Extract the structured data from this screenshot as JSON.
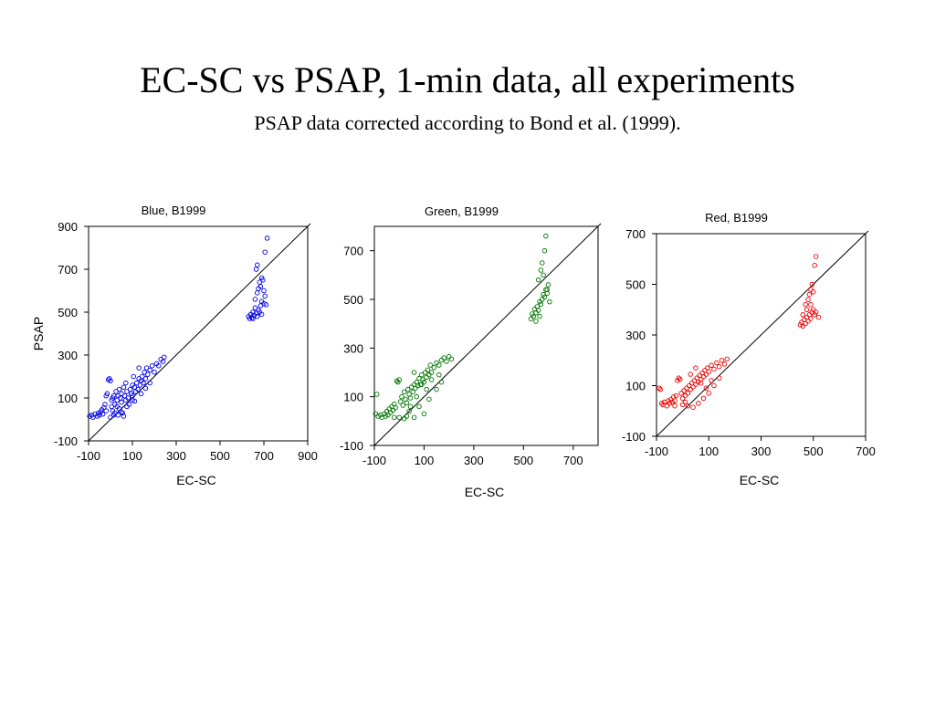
{
  "page": {
    "title": "EC-SC vs PSAP, 1-min data, all experiments",
    "subtitle": "PSAP data corrected according to Bond et al. (1999)."
  },
  "chart_data": [
    {
      "type": "scatter",
      "title": "Blue,  B1999",
      "xlabel": "EC-SC",
      "ylabel": "PSAP",
      "xlim": [
        -100,
        900
      ],
      "ylim": [
        -100,
        900
      ],
      "xticks": [
        -100,
        100,
        300,
        500,
        700,
        900
      ],
      "yticks": [
        -100,
        100,
        300,
        500,
        700,
        900
      ],
      "xtick_labels": [
        "-100",
        "100",
        "300",
        "500",
        "700",
        "900"
      ],
      "ytick_labels": [
        "-100",
        "100",
        "300",
        "500",
        "700",
        "900"
      ],
      "reference_line": "1:1",
      "marker": "open-circle",
      "color": "#0000ee",
      "points": [
        [
          -95,
          15
        ],
        [
          -85,
          20
        ],
        [
          -80,
          10
        ],
        [
          -70,
          25
        ],
        [
          -60,
          15
        ],
        [
          -55,
          30
        ],
        [
          -50,
          20
        ],
        [
          -45,
          35
        ],
        [
          -40,
          45
        ],
        [
          -35,
          25
        ],
        [
          -30,
          55
        ],
        [
          -25,
          70
        ],
        [
          -20,
          40
        ],
        [
          -20,
          110
        ],
        [
          -15,
          120
        ],
        [
          -10,
          185
        ],
        [
          -5,
          190
        ],
        [
          0,
          180
        ],
        [
          5,
          60
        ],
        [
          5,
          90
        ],
        [
          10,
          40
        ],
        [
          10,
          100
        ],
        [
          15,
          110
        ],
        [
          20,
          70
        ],
        [
          25,
          130
        ],
        [
          30,
          60
        ],
        [
          30,
          90
        ],
        [
          35,
          110
        ],
        [
          40,
          50
        ],
        [
          40,
          140
        ],
        [
          45,
          100
        ],
        [
          50,
          80
        ],
        [
          50,
          120
        ],
        [
          55,
          30
        ],
        [
          60,
          150
        ],
        [
          65,
          110
        ],
        [
          70,
          90
        ],
        [
          70,
          170
        ],
        [
          75,
          130
        ],
        [
          80,
          100
        ],
        [
          85,
          70
        ],
        [
          90,
          140
        ],
        [
          95,
          120
        ],
        [
          100,
          110
        ],
        [
          100,
          160
        ],
        [
          105,
          200
        ],
        [
          110,
          150
        ],
        [
          115,
          130
        ],
        [
          120,
          170
        ],
        [
          125,
          140
        ],
        [
          130,
          190
        ],
        [
          135,
          160
        ],
        [
          140,
          180
        ],
        [
          145,
          200
        ],
        [
          150,
          170
        ],
        [
          155,
          220
        ],
        [
          160,
          190
        ],
        [
          165,
          240
        ],
        [
          170,
          210
        ],
        [
          180,
          230
        ],
        [
          190,
          250
        ],
        [
          200,
          220
        ],
        [
          210,
          260
        ],
        [
          220,
          250
        ],
        [
          230,
          280
        ],
        [
          240,
          270
        ],
        [
          245,
          290
        ],
        [
          60,
          15
        ],
        [
          100,
          90
        ],
        [
          130,
          240
        ],
        [
          20,
          30
        ],
        [
          35,
          20
        ],
        [
          0,
          10
        ],
        [
          15,
          20
        ],
        [
          50,
          35
        ],
        [
          75,
          60
        ],
        [
          110,
          85
        ],
        [
          140,
          120
        ],
        [
          160,
          145
        ],
        [
          180,
          170
        ],
        [
          630,
          480
        ],
        [
          635,
          470
        ],
        [
          640,
          490
        ],
        [
          645,
          475
        ],
        [
          650,
          500
        ],
        [
          655,
          485
        ],
        [
          660,
          520
        ],
        [
          665,
          495
        ],
        [
          670,
          480
        ],
        [
          675,
          510
        ],
        [
          680,
          500
        ],
        [
          685,
          530
        ],
        [
          690,
          550
        ],
        [
          700,
          540
        ],
        [
          705,
          575
        ],
        [
          660,
          560
        ],
        [
          670,
          590
        ],
        [
          675,
          610
        ],
        [
          680,
          640
        ],
        [
          685,
          620
        ],
        [
          690,
          660
        ],
        [
          695,
          650
        ],
        [
          700,
          600
        ],
        [
          665,
          700
        ],
        [
          670,
          720
        ],
        [
          705,
          780
        ],
        [
          715,
          845
        ],
        [
          710,
          535
        ],
        [
          650,
          470
        ],
        [
          690,
          490
        ]
      ]
    },
    {
      "type": "scatter",
      "title": "Green, B1999",
      "xlabel": "EC-SC",
      "ylabel": "",
      "xlim": [
        -100,
        800
      ],
      "ylim": [
        -100,
        800
      ],
      "xticks": [
        -100,
        100,
        300,
        500,
        700
      ],
      "yticks": [
        -100,
        100,
        300,
        500,
        700
      ],
      "xtick_labels": [
        "-100",
        "100",
        "300",
        "500",
        "700"
      ],
      "ytick_labels": [
        "-100",
        "100",
        "300",
        "500",
        "700"
      ],
      "reference_line": "1:1",
      "marker": "open-circle",
      "color": "#007700",
      "points": [
        [
          -95,
          30
        ],
        [
          -90,
          110
        ],
        [
          -85,
          20
        ],
        [
          -75,
          25
        ],
        [
          -70,
          15
        ],
        [
          -60,
          30
        ],
        [
          -55,
          20
        ],
        [
          -50,
          40
        ],
        [
          -45,
          25
        ],
        [
          -40,
          50
        ],
        [
          -35,
          35
        ],
        [
          -30,
          60
        ],
        [
          -25,
          45
        ],
        [
          -20,
          70
        ],
        [
          -15,
          55
        ],
        [
          -10,
          165
        ],
        [
          -5,
          160
        ],
        [
          0,
          170
        ],
        [
          5,
          80
        ],
        [
          10,
          100
        ],
        [
          15,
          65
        ],
        [
          20,
          120
        ],
        [
          25,
          90
        ],
        [
          30,
          75
        ],
        [
          35,
          130
        ],
        [
          40,
          110
        ],
        [
          45,
          95
        ],
        [
          50,
          140
        ],
        [
          55,
          120
        ],
        [
          60,
          150
        ],
        [
          65,
          135
        ],
        [
          70,
          160
        ],
        [
          75,
          145
        ],
        [
          80,
          175
        ],
        [
          85,
          150
        ],
        [
          90,
          190
        ],
        [
          95,
          170
        ],
        [
          100,
          160
        ],
        [
          105,
          200
        ],
        [
          110,
          180
        ],
        [
          115,
          210
        ],
        [
          120,
          190
        ],
        [
          125,
          230
        ],
        [
          130,
          200
        ],
        [
          140,
          220
        ],
        [
          150,
          240
        ],
        [
          160,
          230
        ],
        [
          170,
          250
        ],
        [
          180,
          260
        ],
        [
          190,
          245
        ],
        [
          200,
          265
        ],
        [
          210,
          255
        ],
        [
          30,
          20
        ],
        [
          60,
          15
        ],
        [
          100,
          30
        ],
        [
          20,
          10
        ],
        [
          0,
          15
        ],
        [
          40,
          40
        ],
        [
          80,
          60
        ],
        [
          120,
          90
        ],
        [
          150,
          130
        ],
        [
          170,
          160
        ],
        [
          60,
          200
        ],
        [
          90,
          150
        ],
        [
          110,
          130
        ],
        [
          45,
          60
        ],
        [
          -20,
          15
        ],
        [
          70,
          100
        ],
        [
          130,
          170
        ],
        [
          160,
          190
        ],
        [
          530,
          420
        ],
        [
          535,
          440
        ],
        [
          540,
          430
        ],
        [
          545,
          460
        ],
        [
          550,
          445
        ],
        [
          555,
          470
        ],
        [
          560,
          455
        ],
        [
          565,
          490
        ],
        [
          570,
          480
        ],
        [
          575,
          500
        ],
        [
          580,
          520
        ],
        [
          585,
          510
        ],
        [
          590,
          540
        ],
        [
          595,
          525
        ],
        [
          600,
          560
        ],
        [
          560,
          580
        ],
        [
          570,
          620
        ],
        [
          575,
          650
        ],
        [
          580,
          600
        ],
        [
          585,
          700
        ],
        [
          590,
          760
        ],
        [
          595,
          540
        ],
        [
          605,
          490
        ],
        [
          550,
          410
        ],
        [
          565,
          430
        ]
      ]
    },
    {
      "type": "scatter",
      "title": "Red, B1999",
      "xlabel": "EC-SC",
      "ylabel": "",
      "xlim": [
        -100,
        700
      ],
      "ylim": [
        -100,
        700
      ],
      "xticks": [
        -100,
        100,
        300,
        500,
        700
      ],
      "yticks": [
        -100,
        100,
        300,
        500,
        700
      ],
      "xtick_labels": [
        "-100",
        "100",
        "300",
        "500",
        "700"
      ],
      "ytick_labels": [
        "-100",
        "100",
        "300",
        "500",
        "700"
      ],
      "reference_line": "1:1",
      "marker": "open-circle",
      "color": "#ee0000",
      "points": [
        [
          -90,
          90
        ],
        [
          -85,
          85
        ],
        [
          -80,
          30
        ],
        [
          -75,
          25
        ],
        [
          -70,
          35
        ],
        [
          -60,
          20
        ],
        [
          -55,
          40
        ],
        [
          -50,
          30
        ],
        [
          -45,
          45
        ],
        [
          -40,
          35
        ],
        [
          -35,
          55
        ],
        [
          -30,
          40
        ],
        [
          -25,
          60
        ],
        [
          -20,
          120
        ],
        [
          -15,
          130
        ],
        [
          -10,
          125
        ],
        [
          -5,
          70
        ],
        [
          0,
          50
        ],
        [
          5,
          80
        ],
        [
          10,
          60
        ],
        [
          15,
          90
        ],
        [
          20,
          70
        ],
        [
          25,
          100
        ],
        [
          30,
          85
        ],
        [
          35,
          110
        ],
        [
          40,
          95
        ],
        [
          45,
          120
        ],
        [
          50,
          105
        ],
        [
          55,
          130
        ],
        [
          60,
          115
        ],
        [
          65,
          140
        ],
        [
          70,
          125
        ],
        [
          75,
          150
        ],
        [
          80,
          135
        ],
        [
          85,
          160
        ],
        [
          90,
          145
        ],
        [
          95,
          170
        ],
        [
          100,
          155
        ],
        [
          110,
          180
        ],
        [
          120,
          165
        ],
        [
          130,
          190
        ],
        [
          140,
          175
        ],
        [
          150,
          200
        ],
        [
          160,
          185
        ],
        [
          170,
          205
        ],
        [
          20,
          20
        ],
        [
          40,
          15
        ],
        [
          60,
          30
        ],
        [
          80,
          50
        ],
        [
          100,
          70
        ],
        [
          120,
          100
        ],
        [
          140,
          130
        ],
        [
          30,
          145
        ],
        [
          50,
          170
        ],
        [
          70,
          110
        ],
        [
          -30,
          20
        ],
        [
          0,
          25
        ],
        [
          90,
          90
        ],
        [
          110,
          120
        ],
        [
          10,
          35
        ],
        [
          450,
          340
        ],
        [
          455,
          350
        ],
        [
          460,
          335
        ],
        [
          465,
          360
        ],
        [
          470,
          345
        ],
        [
          475,
          370
        ],
        [
          480,
          355
        ],
        [
          485,
          380
        ],
        [
          490,
          365
        ],
        [
          495,
          390
        ],
        [
          500,
          400
        ],
        [
          505,
          380
        ],
        [
          470,
          420
        ],
        [
          480,
          440
        ],
        [
          485,
          460
        ],
        [
          490,
          480
        ],
        [
          495,
          500
        ],
        [
          500,
          470
        ],
        [
          505,
          575
        ],
        [
          510,
          610
        ],
        [
          460,
          380
        ],
        [
          475,
          400
        ],
        [
          490,
          420
        ],
        [
          510,
          390
        ],
        [
          520,
          370
        ]
      ]
    }
  ]
}
